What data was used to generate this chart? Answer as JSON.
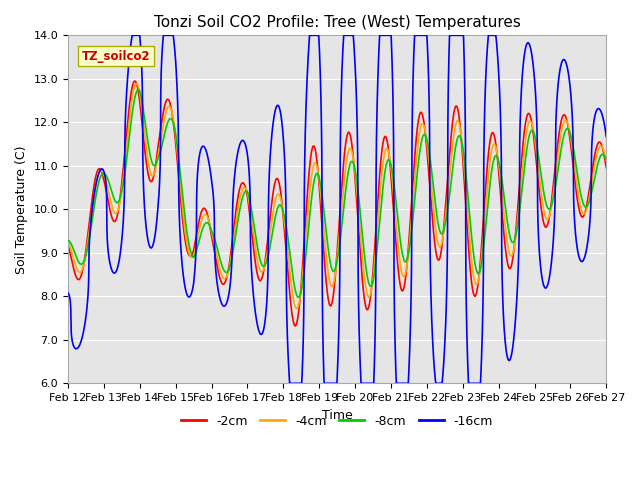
{
  "title": "Tonzi Soil CO2 Profile: Tree (West) Temperatures",
  "xlabel": "Time",
  "ylabel": "Soil Temperature (C)",
  "ylim": [
    6.0,
    14.0
  ],
  "yticks": [
    6.0,
    7.0,
    8.0,
    9.0,
    10.0,
    11.0,
    12.0,
    13.0,
    14.0
  ],
  "xtick_labels": [
    "Feb 12",
    "Feb 13",
    "Feb 14",
    "Feb 15",
    "Feb 16",
    "Feb 17",
    "Feb 18",
    "Feb 19",
    "Feb 20",
    "Feb 21",
    "Feb 22",
    "Feb 23",
    "Feb 24",
    "Feb 25",
    "Feb 26",
    "Feb 27"
  ],
  "series_colors": [
    "#ff0000",
    "#ffaa00",
    "#00cc00",
    "#0000ff"
  ],
  "series_labels": [
    "-2cm",
    "-4cm",
    "-8cm",
    "-16cm"
  ],
  "series_linewidths": [
    1.2,
    1.2,
    1.2,
    1.2
  ],
  "legend_text": "TZ_soilco2",
  "legend_text_color": "#cc0000",
  "legend_box_facecolor": "#ffffcc",
  "legend_box_edgecolor": "#aaaa00",
  "background_color": "#e5e5e5",
  "title_fontsize": 11,
  "axis_label_fontsize": 9,
  "tick_fontsize": 8
}
